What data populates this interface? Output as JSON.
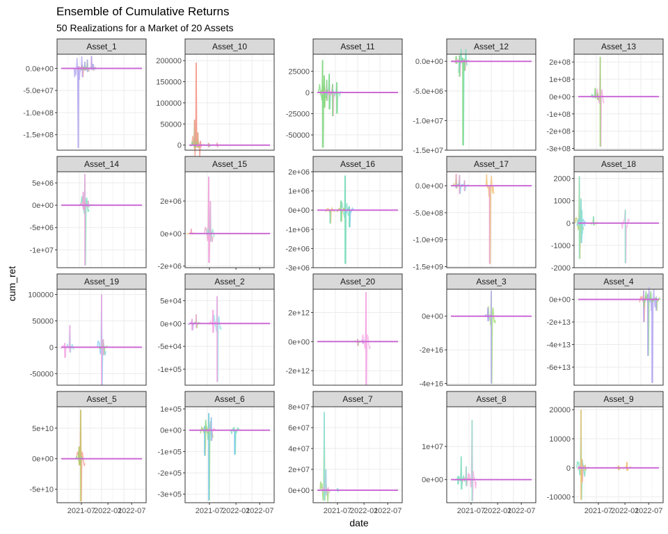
{
  "figure": {
    "title": "Ensemble of Cumulative Returns",
    "subtitle": "50 Realizations for a Market of 20 Assets",
    "xlabel": "date",
    "ylabel": "cum_ret"
  },
  "colors": {
    "mean_line": "#cc6ad6",
    "strip_fill": "#d9d9d9",
    "panel_border": "#333333",
    "grid": "#ebebeb",
    "tick_text": "#4d4d4d",
    "series_palette": [
      "#b4a7f0",
      "#f59a8c",
      "#7fd77f",
      "#9bd36f",
      "#f3a3e0",
      "#6fdcb4",
      "#e9a0c8",
      "#8ee0c8",
      "#f0c070",
      "#c0c860",
      "#7cc8f0",
      "#8fe0e8",
      "#f8b0e8",
      "#9bdc6f"
    ]
  },
  "chart_data": [
    {
      "type": "line",
      "title": "Asset_1",
      "ylim": [
        -185000000,
        32000000
      ],
      "yticks": [
        0,
        -50000000,
        -100000000,
        -150000000
      ],
      "ytick_labels": [
        "0.0e+00",
        "-5.0e+07",
        "-1.0e+08",
        "-1.5e+08"
      ],
      "xticks": [],
      "xtick_labels": [],
      "series_color": "#b4a7f0",
      "spikes": [
        [
          0.22,
          -180000000,
          5000000
        ],
        [
          0.27,
          8000000,
          -20000000
        ],
        [
          0.3,
          15000000,
          -5000000
        ],
        [
          0.33,
          20000000,
          -8000000
        ],
        [
          0.38,
          28000000,
          -3000000
        ],
        [
          0.4,
          10000000,
          -2000000
        ]
      ],
      "mean": 0
    },
    {
      "type": "line",
      "title": "Asset_10",
      "ylim": [
        -12000,
        215000
      ],
      "yticks": [
        0,
        50000,
        100000,
        150000,
        200000
      ],
      "ytick_labels": [
        "0",
        "50000",
        "100000",
        "150000",
        "200000"
      ],
      "xticks": [],
      "xtick_labels": [],
      "series_color": "#f59a8c",
      "spikes": [
        [
          0.1,
          195000,
          -5000
        ],
        [
          0.08,
          60000,
          -8000
        ],
        [
          0.12,
          30000,
          -6000
        ],
        [
          0.15,
          10000,
          -4000
        ],
        [
          0.25,
          5000,
          -5000
        ],
        [
          0.35,
          4000,
          -3000
        ]
      ],
      "mean": 0
    },
    {
      "type": "line",
      "title": "Asset_11",
      "ylim": [
        -68000,
        45000
      ],
      "yticks": [
        25000,
        0,
        -25000,
        -50000
      ],
      "ytick_labels": [
        "25000",
        "0",
        "-25000",
        "-50000"
      ],
      "xticks": [],
      "xtick_labels": [],
      "series_color": "#7fd77f",
      "spikes": [
        [
          0.08,
          38000,
          -65000
        ],
        [
          0.1,
          20000,
          -18000
        ],
        [
          0.13,
          15000,
          -10000
        ],
        [
          0.16,
          22000,
          -20000
        ],
        [
          0.2,
          10000,
          -28000
        ],
        [
          0.25,
          12000,
          -25000
        ]
      ],
      "mean": 0
    },
    {
      "type": "line",
      "title": "Asset_12",
      "ylim": [
        -15000000,
        1200000
      ],
      "yticks": [
        0,
        -5000000,
        -10000000,
        -15000000
      ],
      "ytick_labels": [
        "0.0e+00",
        "-5.0e+06",
        "-1.0e+07",
        "-1.5e+07"
      ],
      "xticks": [],
      "xtick_labels": [],
      "series_color": "#7fd77f",
      "spikes": [
        [
          0.08,
          900000,
          -400000
        ],
        [
          0.12,
          1000000,
          -2600000
        ],
        [
          0.16,
          600000,
          -14200000
        ],
        [
          0.18,
          300000,
          -1600000
        ]
      ],
      "mean": 0
    },
    {
      "type": "line",
      "title": "Asset_13",
      "ylim": [
        -310000000,
        245000000
      ],
      "yticks": [
        200000000,
        100000000,
        0,
        -100000000,
        -200000000,
        -300000000
      ],
      "ytick_labels": [
        "2e+08",
        "1e+08",
        "0e+00",
        "-1e+08",
        "-2e+08",
        "-3e+08"
      ],
      "xticks": [],
      "xtick_labels": [],
      "series_color": "#9bd36f",
      "spikes": [
        [
          0.28,
          230000000,
          -290000000
        ],
        [
          0.22,
          50000000,
          -10000000
        ],
        [
          0.25,
          20000000,
          -20000000
        ],
        [
          0.18,
          10000000,
          -5000000
        ]
      ],
      "mean": 0
    },
    {
      "type": "line",
      "title": "Asset_14",
      "ylim": [
        -14000000,
        7500000
      ],
      "yticks": [
        5000000,
        0,
        -5000000,
        -10000000
      ],
      "ytick_labels": [
        "5e+06",
        "0e+00",
        "-5e+06",
        "-1e+07"
      ],
      "xticks": [],
      "xtick_labels": [],
      "series_color": "#f3a3e0",
      "spikes": [
        [
          0.3,
          7000000,
          -13500000
        ],
        [
          0.28,
          3000000,
          -1000000
        ],
        [
          0.34,
          1000000,
          -500000
        ]
      ],
      "mean": 0
    },
    {
      "type": "line",
      "title": "Asset_15",
      "ylim": [
        -2100000,
        3800000
      ],
      "yticks": [
        2000000,
        0,
        -2000000
      ],
      "ytick_labels": [
        "2e+06",
        "0e+00",
        "-2e+06"
      ],
      "xticks": [
        0.3,
        0.67,
        1.0
      ],
      "xtick_labels": [
        "2021-07",
        "2022-01",
        "2022-07"
      ],
      "series_color": "#f3a3e0",
      "spikes": [
        [
          0.25,
          3500000,
          -1800000
        ],
        [
          0.27,
          2000000,
          -500000
        ],
        [
          0.04,
          300000,
          0
        ]
      ],
      "mean": 0
    },
    {
      "type": "line",
      "title": "Asset_16",
      "ylim": [
        -3000000,
        2000000
      ],
      "yticks": [
        2000000,
        1000000,
        0,
        -1000000,
        -2000000,
        -3000000
      ],
      "ytick_labels": [
        "2e+06",
        "1e+06",
        "0e+00",
        "-1e+06",
        "-2e+06",
        "-3e+06"
      ],
      "xticks": [],
      "xtick_labels": [],
      "series_color": "#6fdcb4",
      "spikes": [
        [
          0.35,
          1800000,
          -2800000
        ],
        [
          0.17,
          0,
          -700000
        ],
        [
          0.3,
          500000,
          -600000
        ],
        [
          0.4,
          200000,
          -900000
        ]
      ],
      "mean": 0
    },
    {
      "type": "line",
      "title": "Asset_17",
      "ylim": [
        -1520000000,
        260000000
      ],
      "yticks": [
        0,
        -500000000,
        -1000000000,
        -1500000000
      ],
      "ytick_labels": [
        "0.0e+00",
        "-5.0e+08",
        "-1.0e+09",
        "-1.5e+09"
      ],
      "xticks": [],
      "xtick_labels": [],
      "series_color": "#e9a0c8",
      "spikes": [
        [
          0.48,
          0,
          -1450000000
        ],
        [
          0.08,
          220000000,
          -50000000
        ],
        [
          0.12,
          200000000,
          -150000000
        ],
        [
          0.18,
          100000000,
          -100000000
        ]
      ],
      "mean": 0
    },
    {
      "type": "line",
      "title": "Asset_18",
      "ylim": [
        -2000000,
        2300000
      ],
      "yticks": [
        2000,
        1000,
        0,
        -1000,
        -2000
      ],
      "ytick_labels": [
        "2000",
        "1000",
        "0",
        "-1000",
        "-2000"
      ],
      "yticks_scale": 1000,
      "xticks": [],
      "xtick_labels": [],
      "series_color": "#8ee0c8",
      "spikes": [
        [
          0.03,
          2100000,
          -1600000
        ],
        [
          0.05,
          1100000,
          -900000
        ],
        [
          0.06,
          600000,
          -500000
        ],
        [
          0.58,
          600000,
          -1800000
        ],
        [
          0.2,
          300000,
          -100000
        ]
      ],
      "mean": 0
    },
    {
      "type": "line",
      "title": "Asset_19",
      "ylim": [
        -72000,
        110000
      ],
      "yticks": [
        100000,
        50000,
        0,
        -50000
      ],
      "ytick_labels": [
        "100000",
        "50000",
        "0",
        "-50000"
      ],
      "xticks": [],
      "xtick_labels": [],
      "series_color": "#f3a3e0",
      "spikes": [
        [
          0.5,
          100000,
          -72000
        ],
        [
          0.12,
          42000,
          -10000
        ],
        [
          0.06,
          8000,
          -20000
        ],
        [
          0.52,
          15000,
          -15000
        ]
      ],
      "mean": 0
    },
    {
      "type": "line",
      "title": "Asset_2",
      "ylim": [
        -135000,
        75000
      ],
      "yticks": [
        50000,
        0,
        -50000,
        -100000
      ],
      "ytick_labels": [
        "5e+04",
        "0e+00",
        "-5e+04",
        "-1e+05"
      ],
      "xticks": [],
      "xtick_labels": [],
      "series_color": "#f3a3e0",
      "spikes": [
        [
          0.35,
          60000,
          -128000
        ],
        [
          0.3,
          30000,
          -20000
        ],
        [
          0.1,
          20000,
          -10000
        ],
        [
          0.05,
          10000,
          -15000
        ]
      ],
      "mean": 0
    },
    {
      "type": "line",
      "title": "Asset_20",
      "ylim": [
        -3000000000000,
        3600000000000
      ],
      "yticks": [
        2000000000000,
        0,
        -2000000000000
      ],
      "ytick_labels": [
        "2e+12",
        "0e+00",
        "-2e+12"
      ],
      "xticks": [],
      "xtick_labels": [],
      "series_color": "#f3a3e0",
      "spikes": [
        [
          0.6,
          3400000000000,
          -3000000000000
        ],
        [
          0.5,
          200000000000,
          -300000000000
        ],
        [
          0.56,
          100000000000,
          -150000000000
        ]
      ],
      "mean": 0
    },
    {
      "type": "line",
      "title": "Asset_3",
      "ylim": [
        -41000000000000000,
        16000000000000000
      ],
      "yticks": [
        0,
        -20000000000000000,
        -40000000000000000
      ],
      "ytick_labels": [
        "0e+00",
        "-2e+16",
        "-4e+16"
      ],
      "xticks": [],
      "xtick_labels": [],
      "series_color": "#b4a7f0",
      "spikes": [
        [
          0.5,
          15000000000000000,
          -40000000000000000
        ],
        [
          0.46,
          5000000000000000,
          -3000000000000000
        ]
      ],
      "mean": 0
    },
    {
      "type": "line",
      "title": "Asset_4",
      "ylim": [
        -76000000000000,
        9000000000000
      ],
      "yticks": [
        0,
        -20000000000000,
        -40000000000000,
        -60000000000000
      ],
      "ytick_labels": [
        "0e+00",
        "-2e+13",
        "-4e+13",
        "-6e+13"
      ],
      "xticks": [],
      "xtick_labels": [],
      "series_color": "#b4a7f0",
      "spikes": [
        [
          0.9,
          1000000000000,
          -74000000000000
        ],
        [
          0.8,
          8000000000000,
          -20000000000000
        ],
        [
          0.85,
          5000000000000,
          -50000000000000
        ],
        [
          0.95,
          2000000000000,
          -10000000000000
        ]
      ],
      "mean": 0
    },
    {
      "type": "line",
      "title": "Asset_5",
      "ylim": [
        -72000000000,
        85000000000
      ],
      "yticks": [
        50000000000,
        0,
        -50000000000
      ],
      "ytick_labels": [
        "5e+10",
        "0e+00",
        "-5e+10"
      ],
      "xticks": [],
      "xtick_labels": [],
      "series_color": "#c0c860",
      "spikes": [
        [
          0.25,
          80000000000,
          -70000000000
        ],
        [
          0.23,
          20000000000,
          -10000000000
        ]
      ],
      "mean": 0
    },
    {
      "type": "line",
      "title": "Asset_6",
      "ylim": [
        -340000,
        110000
      ],
      "yticks": [
        100000,
        0,
        -100000,
        -200000,
        -300000
      ],
      "ytick_labels": [
        "1e+05",
        "0e+00",
        "-1e+05",
        "-2e+05",
        "-3e+05"
      ],
      "xticks": [
        0.3,
        0.67,
        1.0
      ],
      "xtick_labels": [
        "2021-07",
        "2022-01",
        "2022-07"
      ],
      "series_color": "#7cc8f0",
      "spikes": [
        [
          0.25,
          80000,
          -330000
        ],
        [
          0.2,
          20000,
          -120000
        ],
        [
          0.28,
          60000,
          -50000
        ],
        [
          0.56,
          0,
          -115000
        ]
      ],
      "mean": 0
    },
    {
      "type": "line",
      "title": "Asset_7",
      "ylim": [
        -12000000,
        80000000
      ],
      "yticks": [
        80000000,
        60000000,
        40000000,
        20000000,
        0
      ],
      "ytick_labels": [
        "8e+07",
        "6e+07",
        "4e+07",
        "2e+07",
        "0e+00"
      ],
      "xticks": [
        0.3,
        0.67,
        1.0
      ],
      "xtick_labels": [
        "2021-07",
        "2022-01",
        "2022-07"
      ],
      "series_color": "#8fe0e8",
      "spikes": [
        [
          0.1,
          75000000,
          -10000000
        ],
        [
          0.12,
          20000000,
          -5000000
        ],
        [
          0.26,
          2000000,
          -1000000
        ]
      ],
      "mean": 0
    },
    {
      "type": "line",
      "title": "Asset_8",
      "ylim": [
        -7000000,
        22000000
      ],
      "yticks": [
        10000000,
        0
      ],
      "ytick_labels": [
        "1e+07",
        "0e+00"
      ],
      "xticks": [],
      "xtick_labels": [],
      "series_color": "#8ee0c8",
      "spikes": [
        [
          0.27,
          18000000,
          -6500000
        ],
        [
          0.14,
          7000000,
          -3000000
        ],
        [
          0.2,
          4000000,
          -2000000
        ],
        [
          0.1,
          1000000,
          -1500000
        ]
      ],
      "mean": 0
    },
    {
      "type": "line",
      "title": "Asset_9",
      "ylim": [
        -12000,
        21000
      ],
      "yticks": [
        20000,
        10000,
        0,
        -10000
      ],
      "ytick_labels": [
        "20000",
        "10000",
        "0",
        "-10000"
      ],
      "xticks": [],
      "xtick_labels": [],
      "series_color": "#f0c070",
      "spikes": [
        [
          0.05,
          20000,
          -11000
        ],
        [
          0.06,
          3000,
          -5000
        ],
        [
          0.1,
          1000,
          -1000
        ],
        [
          0.6,
          2000,
          -1000
        ],
        [
          0.5,
          800,
          -800
        ]
      ],
      "mean": 0
    }
  ],
  "bottom_xaxis": {
    "tick_labels": [
      "2021-07",
      "2022-01",
      "2022-07"
    ],
    "tick_positions": [
      0.3,
      0.67,
      1.0
    ]
  }
}
